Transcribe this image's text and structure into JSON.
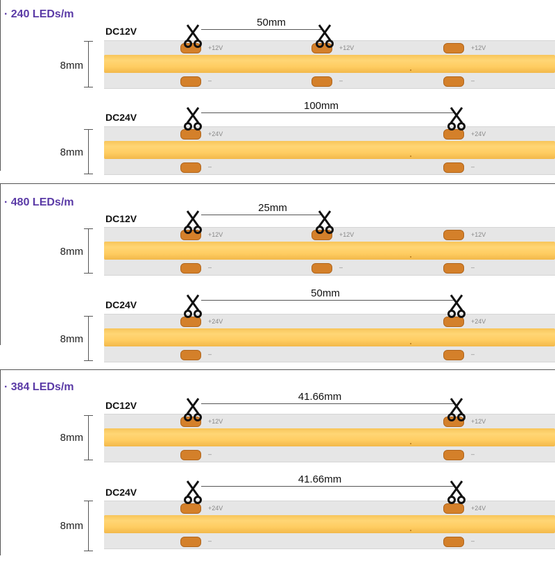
{
  "sections": [
    {
      "title": "· 240 LEDs/m",
      "rows": [
        {
          "voltage": "DC12V",
          "width": "8mm",
          "distance": "50mm",
          "pad_label": "+12V",
          "minus": "–"
        },
        {
          "voltage": "DC24V",
          "width": "8mm",
          "distance": "100mm",
          "pad_label": "+24V",
          "minus": "–"
        }
      ]
    },
    {
      "title": "· 480 LEDs/m",
      "rows": [
        {
          "voltage": "DC12V",
          "width": "8mm",
          "distance": "25mm",
          "pad_label": "+12V",
          "minus": "–"
        },
        {
          "voltage": "DC24V",
          "width": "8mm",
          "distance": "50mm",
          "pad_label": "+24V",
          "minus": "–"
        }
      ]
    },
    {
      "title": "· 384 LEDs/m",
      "rows": [
        {
          "voltage": "DC12V",
          "width": "8mm",
          "distance": "41.66mm",
          "pad_label": "+12V",
          "minus": "–"
        },
        {
          "voltage": "DC24V",
          "width": "8mm",
          "distance": "41.66mm",
          "pad_label": "+24V",
          "minus": "–"
        }
      ]
    }
  ],
  "colors": {
    "title": "#5a3aa6",
    "led": "#ffd675",
    "pad": "#d4802a",
    "strip": "#e6e6e6"
  },
  "icons": {
    "cut": "scissors-icon"
  }
}
